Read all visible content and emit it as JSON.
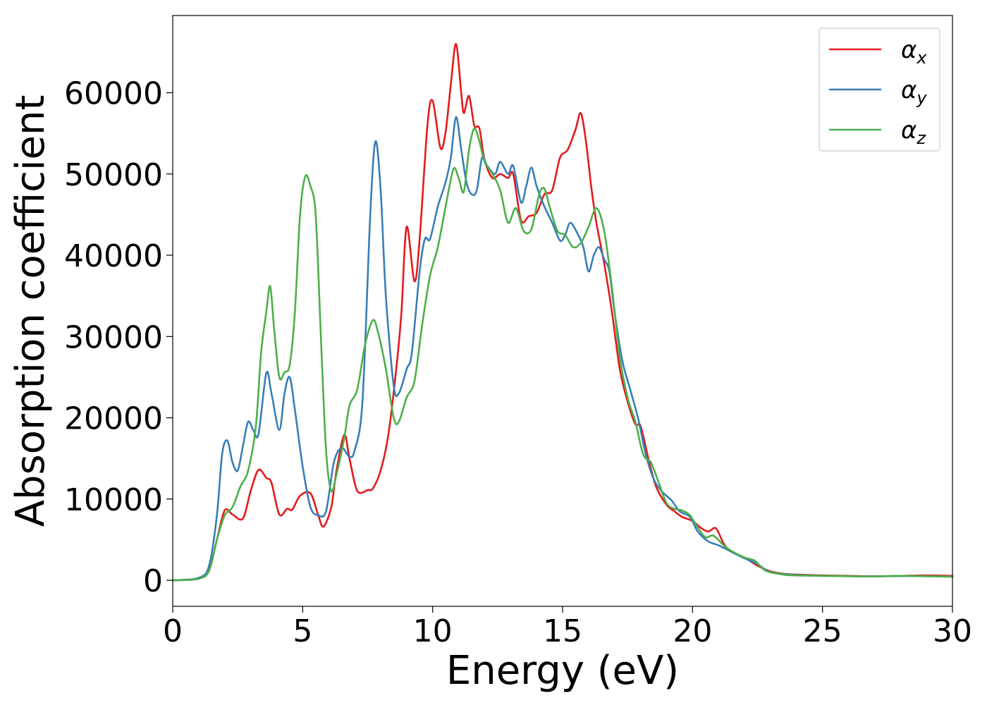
{
  "chart_data": {
    "type": "line",
    "xlabel": "Energy (eV)",
    "ylabel": "Absorption coefficient",
    "xlim": [
      0,
      30
    ],
    "ylim": [
      -3200,
      69500
    ],
    "xticks": [
      0,
      5,
      10,
      15,
      20,
      25,
      30
    ],
    "xtick_labels": [
      "0",
      "5",
      "10",
      "15",
      "20",
      "25",
      "30"
    ],
    "yticks": [
      0,
      10000,
      20000,
      30000,
      40000,
      50000,
      60000
    ],
    "ytick_labels": [
      "0",
      "10000",
      "20000",
      "30000",
      "40000",
      "50000",
      "60000"
    ],
    "grid": false,
    "legend_position": "top-right",
    "series": [
      {
        "name": "α",
        "subscript": "x",
        "color": "#e41a1c",
        "points": [
          [
            0,
            0
          ],
          [
            1,
            200
          ],
          [
            1.4,
            1200
          ],
          [
            1.7,
            5000
          ],
          [
            2.0,
            8600
          ],
          [
            2.3,
            8100
          ],
          [
            2.7,
            7600
          ],
          [
            3.0,
            11000
          ],
          [
            3.3,
            13600
          ],
          [
            3.6,
            12600
          ],
          [
            3.8,
            12000
          ],
          [
            4.1,
            8100
          ],
          [
            4.4,
            8800
          ],
          [
            4.6,
            8700
          ],
          [
            4.9,
            10400
          ],
          [
            5.3,
            10700
          ],
          [
            5.6,
            8000
          ],
          [
            5.8,
            6600
          ],
          [
            6.1,
            9000
          ],
          [
            6.3,
            13500
          ],
          [
            6.6,
            17900
          ],
          [
            6.8,
            15000
          ],
          [
            7.1,
            11000
          ],
          [
            7.5,
            11100
          ],
          [
            7.7,
            11300
          ],
          [
            8.0,
            13500
          ],
          [
            8.3,
            18000
          ],
          [
            8.6,
            26000
          ],
          [
            8.8,
            33000
          ],
          [
            9.0,
            43500
          ],
          [
            9.3,
            36800
          ],
          [
            9.5,
            42000
          ],
          [
            9.8,
            56000
          ],
          [
            10.0,
            59000
          ],
          [
            10.3,
            53200
          ],
          [
            10.5,
            55200
          ],
          [
            10.7,
            61000
          ],
          [
            10.9,
            66000
          ],
          [
            11.1,
            60000
          ],
          [
            11.2,
            57500
          ],
          [
            11.4,
            59600
          ],
          [
            11.6,
            56000
          ],
          [
            11.8,
            55600
          ],
          [
            12.0,
            51700
          ],
          [
            12.3,
            49500
          ],
          [
            12.6,
            50000
          ],
          [
            12.9,
            49500
          ],
          [
            13.1,
            50000
          ],
          [
            13.4,
            44300
          ],
          [
            13.7,
            44800
          ],
          [
            14.0,
            45200
          ],
          [
            14.3,
            47500
          ],
          [
            14.6,
            48000
          ],
          [
            14.9,
            52000
          ],
          [
            15.2,
            53000
          ],
          [
            15.5,
            55500
          ],
          [
            15.7,
            57500
          ],
          [
            15.9,
            54000
          ],
          [
            16.1,
            48500
          ],
          [
            16.3,
            44000
          ],
          [
            16.6,
            39000
          ],
          [
            16.9,
            33000
          ],
          [
            17.2,
            26000
          ],
          [
            17.5,
            22000
          ],
          [
            17.8,
            19200
          ],
          [
            18.0,
            19000
          ],
          [
            18.3,
            15000
          ],
          [
            18.6,
            11500
          ],
          [
            19.0,
            9300
          ],
          [
            19.3,
            8500
          ],
          [
            19.6,
            7800
          ],
          [
            20.0,
            7300
          ],
          [
            20.3,
            6500
          ],
          [
            20.6,
            6000
          ],
          [
            20.9,
            6400
          ],
          [
            21.2,
            4500
          ],
          [
            21.5,
            3500
          ],
          [
            22.0,
            2800
          ],
          [
            22.5,
            1800
          ],
          [
            23.0,
            1100
          ],
          [
            23.5,
            800
          ],
          [
            24,
            700
          ],
          [
            25,
            600
          ],
          [
            26,
            550
          ],
          [
            27,
            500
          ],
          [
            28,
            550
          ],
          [
            29,
            600
          ],
          [
            30,
            550
          ]
        ]
      },
      {
        "name": "α",
        "subscript": "y",
        "color": "#377eb8",
        "points": [
          [
            0,
            0
          ],
          [
            1,
            300
          ],
          [
            1.4,
            1800
          ],
          [
            1.7,
            8000
          ],
          [
            1.9,
            15500
          ],
          [
            2.1,
            17200
          ],
          [
            2.3,
            14500
          ],
          [
            2.5,
            13500
          ],
          [
            2.7,
            16500
          ],
          [
            2.9,
            19500
          ],
          [
            3.1,
            18500
          ],
          [
            3.3,
            18000
          ],
          [
            3.6,
            25500
          ],
          [
            3.8,
            23000
          ],
          [
            4.1,
            18500
          ],
          [
            4.3,
            23000
          ],
          [
            4.5,
            25000
          ],
          [
            4.7,
            21000
          ],
          [
            5.0,
            14000
          ],
          [
            5.3,
            9000
          ],
          [
            5.6,
            8000
          ],
          [
            5.9,
            8500
          ],
          [
            6.2,
            14500
          ],
          [
            6.5,
            16300
          ],
          [
            6.8,
            15200
          ],
          [
            7.0,
            16000
          ],
          [
            7.3,
            22000
          ],
          [
            7.6,
            45000
          ],
          [
            7.8,
            54000
          ],
          [
            8.0,
            48000
          ],
          [
            8.2,
            35000
          ],
          [
            8.5,
            24000
          ],
          [
            8.7,
            23000
          ],
          [
            9.0,
            26000
          ],
          [
            9.2,
            28000
          ],
          [
            9.5,
            38000
          ],
          [
            9.7,
            42000
          ],
          [
            9.9,
            42000
          ],
          [
            10.2,
            46000
          ],
          [
            10.5,
            49000
          ],
          [
            10.7,
            52000
          ],
          [
            10.9,
            57000
          ],
          [
            11.1,
            53000
          ],
          [
            11.3,
            49000
          ],
          [
            11.5,
            47500
          ],
          [
            11.7,
            48000
          ],
          [
            11.9,
            52000
          ],
          [
            12.1,
            51000
          ],
          [
            12.4,
            50000
          ],
          [
            12.6,
            51500
          ],
          [
            12.9,
            50000
          ],
          [
            13.1,
            51000
          ],
          [
            13.4,
            46500
          ],
          [
            13.6,
            48500
          ],
          [
            13.8,
            50800
          ],
          [
            14.0,
            48500
          ],
          [
            14.3,
            46000
          ],
          [
            14.6,
            44000
          ],
          [
            14.9,
            41800
          ],
          [
            15.1,
            42500
          ],
          [
            15.3,
            44000
          ],
          [
            15.6,
            42500
          ],
          [
            15.8,
            41000
          ],
          [
            16.0,
            38000
          ],
          [
            16.2,
            40000
          ],
          [
            16.4,
            41000
          ],
          [
            16.6,
            39500
          ],
          [
            16.8,
            38000
          ],
          [
            17.0,
            33000
          ],
          [
            17.3,
            27000
          ],
          [
            17.6,
            23500
          ],
          [
            17.9,
            20000
          ],
          [
            18.2,
            15500
          ],
          [
            18.5,
            12500
          ],
          [
            18.8,
            11000
          ],
          [
            19.2,
            9800
          ],
          [
            19.5,
            8500
          ],
          [
            19.9,
            7800
          ],
          [
            20.2,
            6000
          ],
          [
            20.6,
            4800
          ],
          [
            21.0,
            4300
          ],
          [
            21.5,
            3500
          ],
          [
            22.0,
            2700
          ],
          [
            22.5,
            2000
          ],
          [
            23.0,
            1000
          ],
          [
            24,
            650
          ],
          [
            25,
            550
          ],
          [
            26,
            500
          ],
          [
            27,
            480
          ],
          [
            28,
            520
          ],
          [
            29,
            500
          ],
          [
            30,
            450
          ]
        ]
      },
      {
        "name": "α",
        "subscript": "z",
        "color": "#4daf4a",
        "points": [
          [
            0,
            0
          ],
          [
            1,
            200
          ],
          [
            1.4,
            1200
          ],
          [
            1.7,
            5000
          ],
          [
            2.0,
            8000
          ],
          [
            2.3,
            9000
          ],
          [
            2.6,
            11500
          ],
          [
            2.9,
            13500
          ],
          [
            3.2,
            19000
          ],
          [
            3.4,
            28000
          ],
          [
            3.6,
            33000
          ],
          [
            3.75,
            36200
          ],
          [
            3.9,
            31000
          ],
          [
            4.1,
            25000
          ],
          [
            4.3,
            25600
          ],
          [
            4.5,
            26500
          ],
          [
            4.7,
            33000
          ],
          [
            4.9,
            45000
          ],
          [
            5.1,
            49700
          ],
          [
            5.3,
            48500
          ],
          [
            5.5,
            45000
          ],
          [
            5.7,
            30000
          ],
          [
            5.9,
            16000
          ],
          [
            6.1,
            11000
          ],
          [
            6.3,
            13000
          ],
          [
            6.6,
            17500
          ],
          [
            6.8,
            21500
          ],
          [
            7.1,
            23500
          ],
          [
            7.4,
            29000
          ],
          [
            7.7,
            32000
          ],
          [
            7.9,
            30500
          ],
          [
            8.2,
            26000
          ],
          [
            8.5,
            20000
          ],
          [
            8.7,
            19500
          ],
          [
            9.0,
            22500
          ],
          [
            9.3,
            24500
          ],
          [
            9.6,
            31500
          ],
          [
            9.9,
            37500
          ],
          [
            10.2,
            41000
          ],
          [
            10.5,
            46000
          ],
          [
            10.8,
            50600
          ],
          [
            11.0,
            49500
          ],
          [
            11.2,
            47800
          ],
          [
            11.4,
            53000
          ],
          [
            11.6,
            55600
          ],
          [
            11.8,
            54000
          ],
          [
            12.0,
            51500
          ],
          [
            12.3,
            50000
          ],
          [
            12.6,
            48000
          ],
          [
            12.9,
            44000
          ],
          [
            13.2,
            45800
          ],
          [
            13.5,
            43000
          ],
          [
            13.8,
            43200
          ],
          [
            14.1,
            47500
          ],
          [
            14.3,
            48200
          ],
          [
            14.5,
            46000
          ],
          [
            14.8,
            43000
          ],
          [
            15.1,
            42500
          ],
          [
            15.4,
            41000
          ],
          [
            15.7,
            41500
          ],
          [
            16.0,
            43500
          ],
          [
            16.3,
            45800
          ],
          [
            16.6,
            43000
          ],
          [
            16.9,
            36000
          ],
          [
            17.2,
            27500
          ],
          [
            17.5,
            22500
          ],
          [
            17.8,
            19500
          ],
          [
            18.1,
            15500
          ],
          [
            18.4,
            14500
          ],
          [
            18.7,
            12000
          ],
          [
            19.0,
            9500
          ],
          [
            19.3,
            8800
          ],
          [
            19.6,
            8600
          ],
          [
            19.9,
            8000
          ],
          [
            20.2,
            6500
          ],
          [
            20.5,
            5300
          ],
          [
            20.8,
            5500
          ],
          [
            21.2,
            4300
          ],
          [
            21.5,
            3600
          ],
          [
            22.0,
            2800
          ],
          [
            22.4,
            2400
          ],
          [
            22.8,
            1200
          ],
          [
            23.5,
            700
          ],
          [
            24,
            600
          ],
          [
            25,
            550
          ],
          [
            26,
            500
          ],
          [
            27,
            480
          ],
          [
            28,
            550
          ],
          [
            29,
            500
          ],
          [
            30,
            450
          ]
        ]
      }
    ]
  }
}
